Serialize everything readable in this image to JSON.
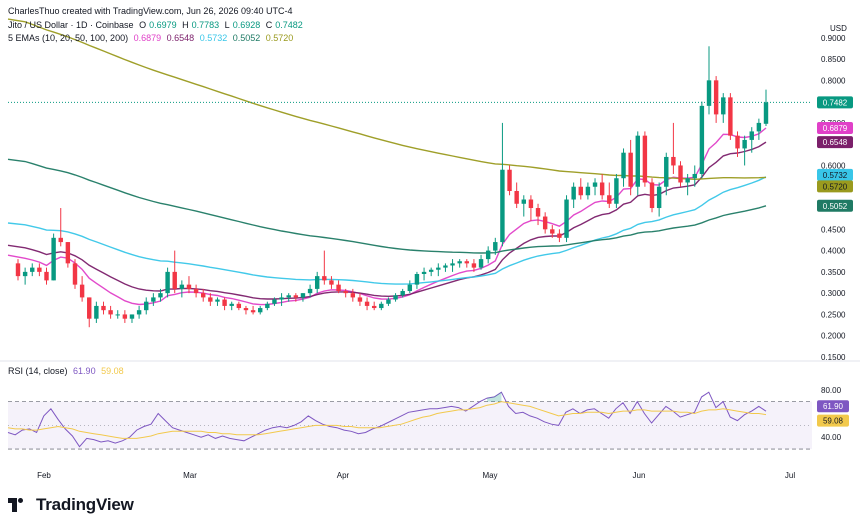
{
  "header": {
    "credit": "CharlesThuo created with TradingView.com, Jun 26, 2026 09:40 UTC-4",
    "symbol": "Jito / US Dollar · 1D · Coinbase",
    "ohlc": [
      {
        "label": "O",
        "value": "0.6979"
      },
      {
        "label": "H",
        "value": "0.7783"
      },
      {
        "label": "L",
        "value": "0.6928"
      },
      {
        "label": "C",
        "value": "0.7482"
      }
    ],
    "ema_label": "5 EMAs (10, 20, 50, 100, 200)",
    "ema_values": [
      {
        "value": "0.6879",
        "color": "#e040c8"
      },
      {
        "value": "0.6548",
        "color": "#7b1f6a"
      },
      {
        "value": "0.5732",
        "color": "#38c6e8"
      },
      {
        "value": "0.5052",
        "color": "#1f7a64"
      },
      {
        "value": "0.5720",
        "color": "#9a9a1e"
      }
    ],
    "rsi_label": "RSI (14, close)",
    "rsi_values": [
      {
        "value": "61.90",
        "color": "#7e57c2"
      },
      {
        "value": "59.08",
        "color": "#f2c94c"
      }
    ]
  },
  "footer": {
    "brand": "TradingView"
  },
  "chart_data": [
    {
      "type": "candlestick",
      "title": "Jito / US Dollar · 1D · Coinbase",
      "currency": "USD",
      "ylim": [
        0.15,
        0.93
      ],
      "yticks": [
        "0.9000",
        "0.8500",
        "0.8000",
        "0.7500",
        "0.7000",
        "0.6500",
        "0.6000",
        "0.5500",
        "0.5000",
        "0.4500",
        "0.4000",
        "0.3500",
        "0.3000",
        "0.2500",
        "0.2000",
        "0.1500"
      ],
      "xticks": [
        "Feb",
        "Mar",
        "Apr",
        "May",
        "Jun",
        "Jul"
      ],
      "colors": {
        "up": "#089981",
        "down": "#f23645"
      },
      "last_price": "0.7482",
      "price_labels": [
        {
          "value": "0.7482",
          "color": "#089981"
        },
        {
          "value": "0.6879",
          "color": "#e040c8"
        },
        {
          "value": "0.6548",
          "color": "#7b1f6a"
        },
        {
          "value": "0.5732",
          "color": "#38c6e8"
        },
        {
          "value": "0.5720",
          "color": "#9a9a1e"
        },
        {
          "value": "0.5052",
          "color": "#1f7a64"
        }
      ],
      "candles_ohlc": [
        [
          0.37,
          0.38,
          0.33,
          0.34
        ],
        [
          0.34,
          0.36,
          0.32,
          0.35
        ],
        [
          0.35,
          0.37,
          0.34,
          0.36
        ],
        [
          0.36,
          0.37,
          0.34,
          0.35
        ],
        [
          0.35,
          0.36,
          0.32,
          0.33
        ],
        [
          0.33,
          0.44,
          0.33,
          0.43
        ],
        [
          0.43,
          0.5,
          0.41,
          0.42
        ],
        [
          0.42,
          0.42,
          0.36,
          0.37
        ],
        [
          0.37,
          0.38,
          0.31,
          0.32
        ],
        [
          0.32,
          0.34,
          0.28,
          0.29
        ],
        [
          0.29,
          0.29,
          0.22,
          0.24
        ],
        [
          0.24,
          0.28,
          0.23,
          0.27
        ],
        [
          0.27,
          0.28,
          0.25,
          0.26
        ],
        [
          0.26,
          0.27,
          0.24,
          0.25
        ],
        [
          0.25,
          0.26,
          0.24,
          0.25
        ],
        [
          0.25,
          0.26,
          0.23,
          0.24
        ],
        [
          0.24,
          0.25,
          0.23,
          0.25
        ],
        [
          0.25,
          0.27,
          0.24,
          0.26
        ],
        [
          0.26,
          0.29,
          0.25,
          0.28
        ],
        [
          0.28,
          0.3,
          0.27,
          0.29
        ],
        [
          0.29,
          0.31,
          0.28,
          0.3
        ],
        [
          0.3,
          0.36,
          0.29,
          0.35
        ],
        [
          0.35,
          0.4,
          0.3,
          0.31
        ],
        [
          0.31,
          0.33,
          0.29,
          0.32
        ],
        [
          0.32,
          0.34,
          0.3,
          0.31
        ],
        [
          0.31,
          0.32,
          0.29,
          0.3
        ],
        [
          0.3,
          0.31,
          0.28,
          0.29
        ],
        [
          0.29,
          0.3,
          0.27,
          0.28
        ],
        [
          0.28,
          0.29,
          0.27,
          0.285
        ],
        [
          0.285,
          0.29,
          0.26,
          0.27
        ],
        [
          0.27,
          0.28,
          0.26,
          0.275
        ],
        [
          0.275,
          0.28,
          0.26,
          0.265
        ],
        [
          0.265,
          0.27,
          0.25,
          0.26
        ],
        [
          0.26,
          0.27,
          0.25,
          0.255
        ],
        [
          0.255,
          0.27,
          0.25,
          0.265
        ],
        [
          0.265,
          0.28,
          0.26,
          0.275
        ],
        [
          0.275,
          0.29,
          0.27,
          0.285
        ],
        [
          0.285,
          0.3,
          0.27,
          0.29
        ],
        [
          0.29,
          0.3,
          0.28,
          0.295
        ],
        [
          0.295,
          0.3,
          0.28,
          0.29
        ],
        [
          0.29,
          0.3,
          0.28,
          0.3
        ],
        [
          0.3,
          0.32,
          0.29,
          0.31
        ],
        [
          0.31,
          0.35,
          0.3,
          0.34
        ],
        [
          0.34,
          0.4,
          0.32,
          0.33
        ],
        [
          0.33,
          0.34,
          0.31,
          0.32
        ],
        [
          0.32,
          0.33,
          0.3,
          0.305
        ],
        [
          0.305,
          0.31,
          0.29,
          0.3
        ],
        [
          0.3,
          0.31,
          0.28,
          0.29
        ],
        [
          0.29,
          0.3,
          0.27,
          0.28
        ],
        [
          0.28,
          0.29,
          0.26,
          0.27
        ],
        [
          0.27,
          0.28,
          0.26,
          0.265
        ],
        [
          0.265,
          0.28,
          0.26,
          0.275
        ],
        [
          0.275,
          0.29,
          0.27,
          0.285
        ],
        [
          0.285,
          0.3,
          0.28,
          0.295
        ],
        [
          0.295,
          0.31,
          0.29,
          0.305
        ],
        [
          0.305,
          0.33,
          0.3,
          0.32
        ],
        [
          0.32,
          0.35,
          0.31,
          0.345
        ],
        [
          0.345,
          0.36,
          0.33,
          0.35
        ],
        [
          0.35,
          0.36,
          0.34,
          0.355
        ],
        [
          0.355,
          0.37,
          0.34,
          0.36
        ],
        [
          0.36,
          0.37,
          0.35,
          0.365
        ],
        [
          0.365,
          0.38,
          0.35,
          0.37
        ],
        [
          0.37,
          0.38,
          0.36,
          0.375
        ],
        [
          0.375,
          0.38,
          0.36,
          0.37
        ],
        [
          0.37,
          0.38,
          0.35,
          0.36
        ],
        [
          0.36,
          0.39,
          0.355,
          0.38
        ],
        [
          0.38,
          0.41,
          0.37,
          0.4
        ],
        [
          0.4,
          0.43,
          0.39,
          0.42
        ],
        [
          0.42,
          0.7,
          0.41,
          0.59
        ],
        [
          0.59,
          0.6,
          0.53,
          0.54
        ],
        [
          0.54,
          0.56,
          0.5,
          0.51
        ],
        [
          0.51,
          0.53,
          0.48,
          0.52
        ],
        [
          0.52,
          0.53,
          0.47,
          0.5
        ],
        [
          0.5,
          0.51,
          0.46,
          0.48
        ],
        [
          0.48,
          0.49,
          0.44,
          0.45
        ],
        [
          0.45,
          0.46,
          0.43,
          0.44
        ],
        [
          0.44,
          0.45,
          0.42,
          0.43
        ],
        [
          0.43,
          0.53,
          0.42,
          0.52
        ],
        [
          0.52,
          0.56,
          0.5,
          0.55
        ],
        [
          0.55,
          0.57,
          0.52,
          0.53
        ],
        [
          0.53,
          0.56,
          0.52,
          0.55
        ],
        [
          0.55,
          0.57,
          0.53,
          0.56
        ],
        [
          0.56,
          0.58,
          0.52,
          0.53
        ],
        [
          0.53,
          0.56,
          0.5,
          0.51
        ],
        [
          0.51,
          0.58,
          0.5,
          0.57
        ],
        [
          0.57,
          0.64,
          0.55,
          0.63
        ],
        [
          0.63,
          0.66,
          0.53,
          0.55
        ],
        [
          0.55,
          0.68,
          0.53,
          0.67
        ],
        [
          0.67,
          0.68,
          0.55,
          0.56
        ],
        [
          0.56,
          0.57,
          0.49,
          0.5
        ],
        [
          0.5,
          0.56,
          0.48,
          0.55
        ],
        [
          0.55,
          0.63,
          0.53,
          0.62
        ],
        [
          0.62,
          0.7,
          0.58,
          0.6
        ],
        [
          0.6,
          0.61,
          0.55,
          0.56
        ],
        [
          0.56,
          0.58,
          0.53,
          0.57
        ],
        [
          0.57,
          0.6,
          0.55,
          0.58
        ],
        [
          0.58,
          0.75,
          0.57,
          0.74
        ],
        [
          0.74,
          0.88,
          0.72,
          0.8
        ],
        [
          0.8,
          0.81,
          0.7,
          0.72
        ],
        [
          0.72,
          0.77,
          0.7,
          0.76
        ],
        [
          0.76,
          0.77,
          0.66,
          0.67
        ],
        [
          0.67,
          0.68,
          0.62,
          0.64
        ],
        [
          0.64,
          0.67,
          0.6,
          0.66
        ],
        [
          0.66,
          0.69,
          0.63,
          0.68
        ],
        [
          0.68,
          0.71,
          0.66,
          0.7
        ],
        [
          0.6979,
          0.7783,
          0.6928,
          0.7482
        ]
      ],
      "ema_series": [
        {
          "name": "EMA 10",
          "color": "#e040c8"
        },
        {
          "name": "EMA 20",
          "color": "#7b1f6a"
        },
        {
          "name": "EMA 50",
          "color": "#38c6e8"
        },
        {
          "name": "EMA 100",
          "color": "#1f7a64"
        },
        {
          "name": "EMA 200",
          "color": "#9a9a1e"
        }
      ]
    },
    {
      "type": "line",
      "title": "RSI (14, close)",
      "ylim": [
        25,
        95
      ],
      "yticks": [
        "80.00",
        "40.00"
      ],
      "bands": [
        30,
        70
      ],
      "series": [
        {
          "name": "RSI",
          "color": "#7e57c2",
          "values": [
            44,
            42,
            46,
            47,
            44,
            58,
            64,
            55,
            47,
            41,
            32,
            39,
            38,
            36,
            37,
            35,
            37,
            40,
            46,
            49,
            51,
            60,
            54,
            48,
            46,
            44,
            42,
            40,
            42,
            39,
            41,
            39,
            38,
            37,
            40,
            43,
            46,
            48,
            49,
            48,
            50,
            53,
            58,
            54,
            51,
            49,
            48,
            46,
            45,
            43,
            44,
            47,
            49,
            52,
            55,
            58,
            61,
            62,
            63,
            64,
            64,
            65,
            66,
            65,
            62,
            66,
            70,
            73,
            74,
            78,
            66,
            60,
            61,
            58,
            56,
            53,
            51,
            50,
            61,
            64,
            60,
            63,
            64,
            60,
            56,
            64,
            69,
            60,
            70,
            60,
            52,
            59,
            66,
            62,
            57,
            59,
            61,
            74,
            78,
            65,
            70,
            57,
            54,
            59,
            62,
            66,
            61.9
          ]
        },
        {
          "name": "RSI MA",
          "color": "#f2c94c",
          "values": [
            48,
            47,
            47,
            46,
            46,
            47,
            48,
            49,
            48,
            47,
            45,
            44,
            43,
            42,
            41,
            40,
            39,
            39,
            39,
            40,
            41,
            43,
            44,
            45,
            45,
            45,
            45,
            45,
            44,
            44,
            43,
            43,
            42,
            42,
            42,
            42,
            43,
            44,
            45,
            46,
            47,
            48,
            49,
            50,
            50,
            50,
            50,
            49,
            49,
            48,
            48,
            48,
            48,
            49,
            50,
            51,
            53,
            55,
            57,
            58,
            60,
            61,
            62,
            63,
            63,
            64,
            65,
            67,
            68,
            70,
            69,
            68,
            67,
            66,
            64,
            62,
            60,
            58,
            59,
            60,
            60,
            61,
            61,
            61,
            60,
            61,
            62,
            62,
            63,
            63,
            62,
            62,
            62,
            62,
            61,
            61,
            60,
            62,
            63,
            63,
            64,
            63,
            62,
            61,
            60,
            60,
            59.08
          ]
        }
      ],
      "price_labels": [
        {
          "value": "61.90",
          "color": "#7e57c2"
        },
        {
          "value": "59.08",
          "color": "#f2c94c"
        }
      ]
    }
  ]
}
